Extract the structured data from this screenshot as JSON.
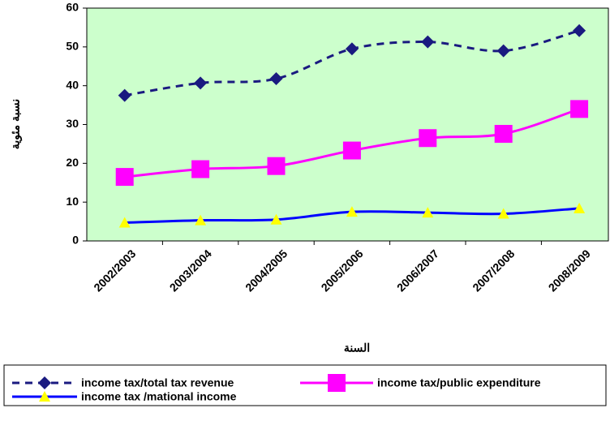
{
  "chart_data": {
    "type": "line",
    "y_label": "نسبة مئوية",
    "x_label": "السنة",
    "categories": [
      "2002/2003",
      "2003/2004",
      "2004/2005",
      "2005/2006",
      "2006/2007",
      "2007/2008",
      "2008/2009"
    ],
    "series": [
      {
        "name": "income tax/total tax revenue",
        "color": "#1a1a80",
        "marker": "diamond",
        "marker_color": "#1a1a80",
        "dash": true,
        "values": [
          37.5,
          40.7,
          41.8,
          49.5,
          51.3,
          49.0,
          54.2
        ]
      },
      {
        "name": "income tax/public expenditure",
        "color": "#ff00ff",
        "marker": "square",
        "marker_color": "#ff00ff",
        "dash": false,
        "values": [
          16.5,
          18.5,
          19.3,
          23.3,
          26.5,
          27.6,
          34.0
        ]
      },
      {
        "name": "income tax /mational income",
        "color": "#0000ff",
        "marker": "triangle",
        "marker_color": "#ffff00",
        "dash": false,
        "values": [
          4.7,
          5.3,
          5.5,
          7.5,
          7.3,
          7.0,
          8.4
        ]
      }
    ],
    "ylim": [
      0,
      60
    ],
    "yticks": [
      0,
      10,
      20,
      30,
      40,
      50,
      60
    ],
    "grid": false,
    "legend": "bottom"
  }
}
